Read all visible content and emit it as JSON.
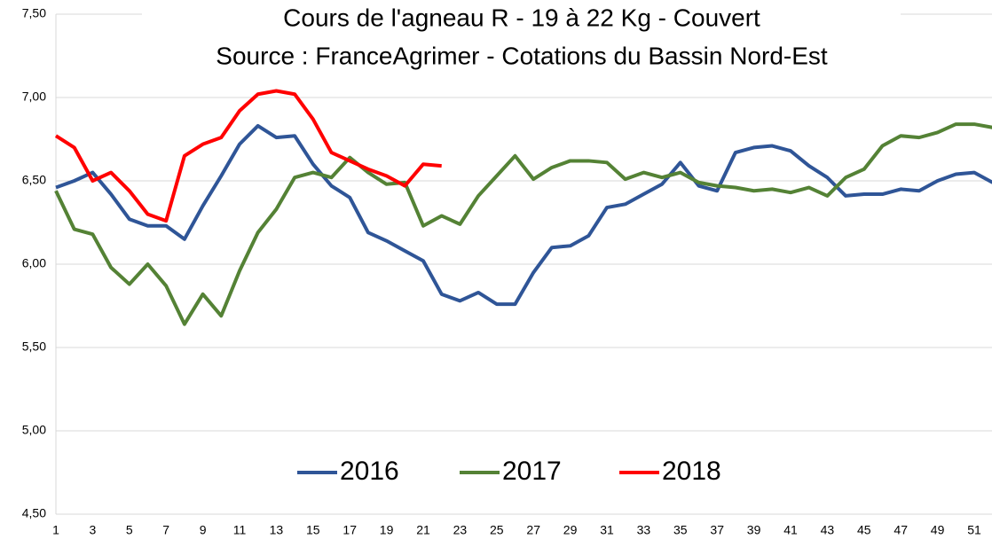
{
  "chart_data": {
    "type": "line",
    "title": "Cours de l'agneau R - 19 à 22 Kg - Couvert",
    "subtitle": "Source : FranceAgrimer - Cotations du Bassin Nord-Est",
    "categories": [
      "1",
      null,
      "3",
      null,
      "5",
      null,
      "7",
      null,
      "9",
      null,
      "11",
      null,
      "13",
      null,
      "15",
      null,
      "17",
      null,
      "19",
      null,
      "21",
      null,
      "23",
      null,
      "25",
      null,
      "27",
      null,
      "29",
      null,
      "31",
      null,
      "33",
      null,
      "35",
      null,
      "37",
      null,
      "39",
      null,
      "41",
      null,
      "43",
      null,
      "45",
      null,
      "47",
      null,
      "49",
      null,
      "51",
      null
    ],
    "ylim": [
      4.5,
      7.5
    ],
    "yticks": [
      {
        "value": 4.5,
        "label": "4,50"
      },
      {
        "value": 5,
        "label": "5,00"
      },
      {
        "value": 5.5,
        "label": "5,50"
      },
      {
        "value": 6,
        "label": "6,00"
      },
      {
        "value": 6.5,
        "label": "6,50"
      },
      {
        "value": 7,
        "label": "7,00"
      },
      {
        "value": 7.5,
        "label": "7,50"
      }
    ],
    "grid": true,
    "legend": "bottom",
    "series": [
      {
        "name": "2016",
        "color": "#2f5597",
        "values": [
          6.46,
          6.5,
          6.55,
          6.42,
          6.27,
          6.23,
          6.23,
          6.15,
          6.35,
          6.53,
          6.72,
          6.83,
          6.76,
          6.77,
          6.6,
          6.47,
          6.4,
          6.19,
          6.14,
          6.08,
          6.02,
          5.82,
          5.78,
          5.83,
          5.76,
          5.76,
          5.95,
          6.1,
          6.11,
          6.17,
          6.34,
          6.36,
          6.42,
          6.48,
          6.61,
          6.47,
          6.44,
          6.67,
          6.7,
          6.71,
          6.68,
          6.59,
          6.52,
          6.41,
          6.42,
          6.42,
          6.45,
          6.44,
          6.5,
          6.54,
          6.55,
          6.49
        ]
      },
      {
        "name": "2017",
        "color": "#548235",
        "values": [
          6.44,
          6.21,
          6.18,
          5.98,
          5.88,
          6.0,
          5.87,
          5.64,
          5.82,
          5.69,
          5.96,
          6.19,
          6.33,
          6.52,
          6.55,
          6.52,
          6.64,
          6.55,
          6.48,
          6.49,
          6.23,
          6.29,
          6.24,
          6.41,
          6.53,
          6.65,
          6.51,
          6.58,
          6.62,
          6.62,
          6.61,
          6.51,
          6.55,
          6.52,
          6.55,
          6.49,
          6.47,
          6.46,
          6.44,
          6.45,
          6.43,
          6.46,
          6.41,
          6.52,
          6.57,
          6.71,
          6.77,
          6.76,
          6.79,
          6.84,
          6.84,
          6.82
        ]
      },
      {
        "name": "2018",
        "color": "#ff0000",
        "values": [
          6.77,
          6.7,
          6.5,
          6.55,
          6.44,
          6.3,
          6.26,
          6.65,
          6.72,
          6.76,
          6.92,
          7.02,
          7.04,
          7.02,
          6.87,
          6.67,
          6.62,
          6.57,
          6.53,
          6.47,
          6.6,
          6.59,
          null,
          null,
          null,
          null,
          null,
          null,
          null,
          null,
          null,
          null,
          null,
          null,
          null,
          null,
          null,
          null,
          null,
          null,
          null,
          null,
          null,
          null,
          null,
          null,
          null,
          null,
          null,
          null,
          null,
          null
        ]
      }
    ]
  }
}
